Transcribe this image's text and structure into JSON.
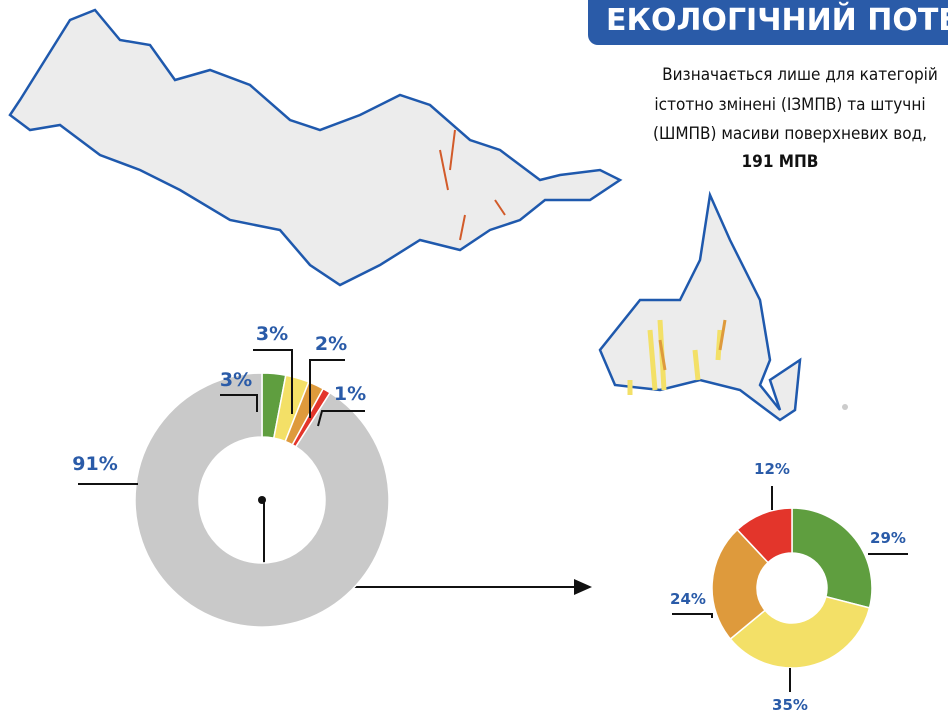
{
  "header": {
    "title": "ЕКОЛОГІЧНИЙ ПОТЕНЦІАЛ",
    "description": [
      "Визначається лише для категорій",
      "істотно змінені (ІЗМПВ) та штучні",
      "(ШМПВ) масиви поверхневих вод,"
    ],
    "count": "191 МПВ"
  },
  "chart_data": [
    {
      "type": "donut",
      "categories": [
        null,
        null,
        null,
        null,
        null
      ],
      "values": [
        3,
        3,
        2,
        1,
        91
      ],
      "value_labels": [
        "3%",
        "3%",
        "2%",
        "1%",
        "91%"
      ],
      "colors": [
        "#5f9e3f",
        "#f3e067",
        "#de9a3c",
        "#e3352b",
        "#c9c9c9"
      ]
    },
    {
      "type": "donut",
      "categories": [
        null,
        null,
        null,
        null
      ],
      "values": [
        29,
        35,
        24,
        12
      ],
      "value_labels": [
        "29%",
        "35%",
        "24%",
        "12%"
      ],
      "colors": [
        "#5f9e3f",
        "#f3e067",
        "#de9a3c",
        "#e3352b"
      ]
    }
  ]
}
